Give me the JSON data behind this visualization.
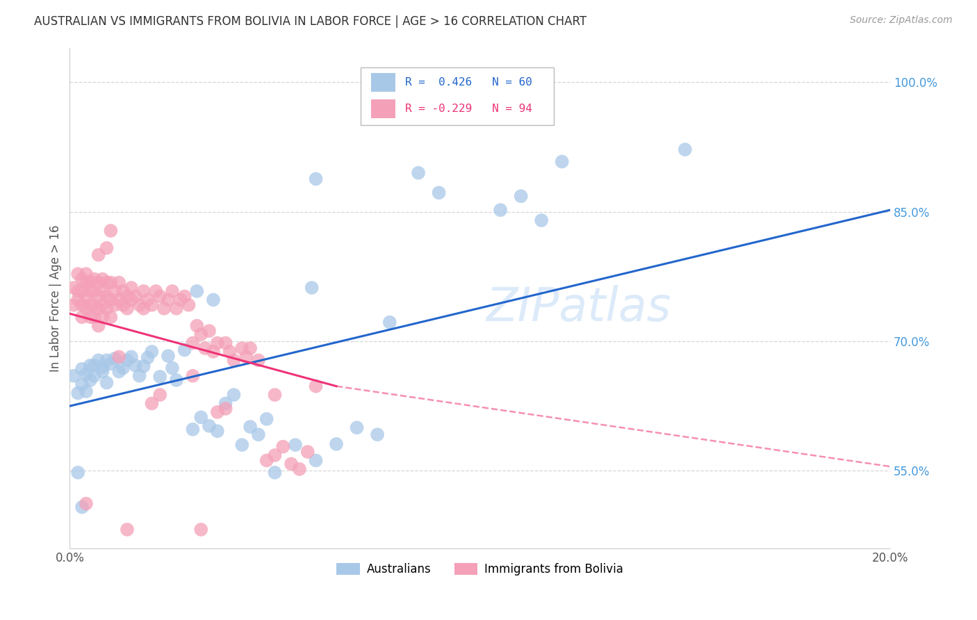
{
  "title": "AUSTRALIAN VS IMMIGRANTS FROM BOLIVIA IN LABOR FORCE | AGE > 16 CORRELATION CHART",
  "source": "Source: ZipAtlas.com",
  "ylabel": "In Labor Force | Age > 16",
  "r_australian": 0.426,
  "n_australian": 60,
  "r_bolivia": -0.229,
  "n_bolivia": 94,
  "color_australian": "#a8c8e8",
  "color_bolivia": "#f4a0b8",
  "line_color_australian": "#2266cc",
  "line_color_bolivia": "#ee3377",
  "legend_label_australian": "Australians",
  "legend_label_bolivia": "Immigrants from Bolivia",
  "watermark": "ZIPatlas",
  "background_color": "#ffffff",
  "grid_color": "#cccccc",
  "title_color": "#333333",
  "axis_tick_color": "#4499dd",
  "xmin": 0.0,
  "xmax": 0.2,
  "ymin": 0.46,
  "ymax": 1.04,
  "ytick_vals": [
    0.55,
    0.7,
    0.85,
    1.0
  ],
  "xtick_vals": [
    0.0,
    0.2
  ],
  "aus_line": {
    "x0": 0.0,
    "y0": 0.625,
    "x1": 0.2,
    "y1": 0.852
  },
  "bol_line_solid": {
    "x0": 0.0,
    "y0": 0.732,
    "x1": 0.065,
    "y1": 0.648
  },
  "bol_line_dashed": {
    "x0": 0.065,
    "y0": 0.648,
    "x1": 0.2,
    "y1": 0.555
  },
  "australian_points": [
    [
      0.001,
      0.66
    ],
    [
      0.002,
      0.64
    ],
    [
      0.003,
      0.65
    ],
    [
      0.003,
      0.668
    ],
    [
      0.004,
      0.662
    ],
    [
      0.004,
      0.642
    ],
    [
      0.005,
      0.672
    ],
    [
      0.005,
      0.655
    ],
    [
      0.006,
      0.66
    ],
    [
      0.006,
      0.672
    ],
    [
      0.007,
      0.678
    ],
    [
      0.008,
      0.665
    ],
    [
      0.008,
      0.67
    ],
    [
      0.009,
      0.652
    ],
    [
      0.009,
      0.678
    ],
    [
      0.01,
      0.674
    ],
    [
      0.011,
      0.68
    ],
    [
      0.012,
      0.665
    ],
    [
      0.013,
      0.669
    ],
    [
      0.014,
      0.678
    ],
    [
      0.015,
      0.682
    ],
    [
      0.016,
      0.672
    ],
    [
      0.017,
      0.66
    ],
    [
      0.018,
      0.671
    ],
    [
      0.019,
      0.681
    ],
    [
      0.02,
      0.688
    ],
    [
      0.022,
      0.659
    ],
    [
      0.024,
      0.683
    ],
    [
      0.025,
      0.669
    ],
    [
      0.026,
      0.655
    ],
    [
      0.028,
      0.69
    ],
    [
      0.03,
      0.598
    ],
    [
      0.032,
      0.612
    ],
    [
      0.034,
      0.602
    ],
    [
      0.036,
      0.596
    ],
    [
      0.038,
      0.628
    ],
    [
      0.04,
      0.638
    ],
    [
      0.042,
      0.58
    ],
    [
      0.044,
      0.601
    ],
    [
      0.046,
      0.592
    ],
    [
      0.048,
      0.61
    ],
    [
      0.05,
      0.548
    ],
    [
      0.055,
      0.58
    ],
    [
      0.06,
      0.562
    ],
    [
      0.065,
      0.581
    ],
    [
      0.07,
      0.6
    ],
    [
      0.075,
      0.592
    ],
    [
      0.031,
      0.758
    ],
    [
      0.059,
      0.762
    ],
    [
      0.078,
      0.722
    ],
    [
      0.105,
      0.852
    ],
    [
      0.11,
      0.868
    ],
    [
      0.115,
      0.84
    ],
    [
      0.09,
      0.872
    ],
    [
      0.12,
      0.908
    ],
    [
      0.085,
      0.895
    ],
    [
      0.15,
      0.922
    ],
    [
      0.06,
      0.888
    ],
    [
      0.035,
      0.748
    ],
    [
      0.002,
      0.548
    ],
    [
      0.003,
      0.508
    ]
  ],
  "bolivia_points": [
    [
      0.001,
      0.762
    ],
    [
      0.001,
      0.742
    ],
    [
      0.002,
      0.778
    ],
    [
      0.002,
      0.758
    ],
    [
      0.002,
      0.748
    ],
    [
      0.003,
      0.772
    ],
    [
      0.003,
      0.758
    ],
    [
      0.003,
      0.742
    ],
    [
      0.003,
      0.728
    ],
    [
      0.004,
      0.768
    ],
    [
      0.004,
      0.752
    ],
    [
      0.004,
      0.738
    ],
    [
      0.004,
      0.778
    ],
    [
      0.005,
      0.769
    ],
    [
      0.005,
      0.758
    ],
    [
      0.005,
      0.742
    ],
    [
      0.005,
      0.728
    ],
    [
      0.006,
      0.772
    ],
    [
      0.006,
      0.758
    ],
    [
      0.006,
      0.742
    ],
    [
      0.006,
      0.728
    ],
    [
      0.007,
      0.768
    ],
    [
      0.007,
      0.752
    ],
    [
      0.007,
      0.738
    ],
    [
      0.007,
      0.718
    ],
    [
      0.008,
      0.772
    ],
    [
      0.008,
      0.758
    ],
    [
      0.008,
      0.742
    ],
    [
      0.008,
      0.728
    ],
    [
      0.009,
      0.768
    ],
    [
      0.009,
      0.752
    ],
    [
      0.009,
      0.738
    ],
    [
      0.01,
      0.768
    ],
    [
      0.01,
      0.748
    ],
    [
      0.01,
      0.728
    ],
    [
      0.011,
      0.758
    ],
    [
      0.011,
      0.742
    ],
    [
      0.012,
      0.768
    ],
    [
      0.012,
      0.748
    ],
    [
      0.013,
      0.758
    ],
    [
      0.013,
      0.742
    ],
    [
      0.014,
      0.752
    ],
    [
      0.014,
      0.738
    ],
    [
      0.015,
      0.762
    ],
    [
      0.015,
      0.748
    ],
    [
      0.016,
      0.752
    ],
    [
      0.017,
      0.742
    ],
    [
      0.018,
      0.758
    ],
    [
      0.018,
      0.738
    ],
    [
      0.019,
      0.748
    ],
    [
      0.02,
      0.742
    ],
    [
      0.021,
      0.758
    ],
    [
      0.022,
      0.752
    ],
    [
      0.023,
      0.738
    ],
    [
      0.024,
      0.748
    ],
    [
      0.025,
      0.758
    ],
    [
      0.026,
      0.738
    ],
    [
      0.027,
      0.748
    ],
    [
      0.028,
      0.752
    ],
    [
      0.029,
      0.742
    ],
    [
      0.03,
      0.698
    ],
    [
      0.031,
      0.718
    ],
    [
      0.032,
      0.708
    ],
    [
      0.033,
      0.692
    ],
    [
      0.034,
      0.712
    ],
    [
      0.035,
      0.688
    ],
    [
      0.036,
      0.698
    ],
    [
      0.038,
      0.698
    ],
    [
      0.039,
      0.688
    ],
    [
      0.04,
      0.678
    ],
    [
      0.042,
      0.692
    ],
    [
      0.043,
      0.682
    ],
    [
      0.044,
      0.692
    ],
    [
      0.046,
      0.678
    ],
    [
      0.048,
      0.562
    ],
    [
      0.05,
      0.568
    ],
    [
      0.052,
      0.578
    ],
    [
      0.054,
      0.558
    ],
    [
      0.056,
      0.552
    ],
    [
      0.058,
      0.572
    ],
    [
      0.007,
      0.8
    ],
    [
      0.009,
      0.808
    ],
    [
      0.01,
      0.828
    ],
    [
      0.012,
      0.682
    ],
    [
      0.03,
      0.66
    ],
    [
      0.004,
      0.512
    ],
    [
      0.014,
      0.482
    ],
    [
      0.032,
      0.482
    ],
    [
      0.036,
      0.618
    ],
    [
      0.038,
      0.622
    ],
    [
      0.022,
      0.638
    ],
    [
      0.02,
      0.628
    ],
    [
      0.05,
      0.638
    ],
    [
      0.06,
      0.648
    ]
  ]
}
